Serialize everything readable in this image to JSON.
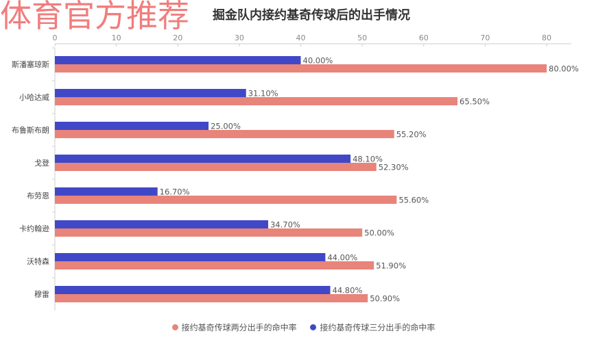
{
  "watermark": "体育官方推荐",
  "chart_data": {
    "type": "bar",
    "orientation": "horizontal",
    "title": "掘金队内接约基奇传球后的出手情况",
    "categories": [
      "斯潘塞琼斯",
      "小哈达威",
      "布鲁斯布朗",
      "戈登",
      "布劳恩",
      "卡约翰逊",
      "沃特森",
      "穆雷"
    ],
    "series": [
      {
        "name": "接约基奇传球三分出手的命中率",
        "color": "#4048c8",
        "values": [
          40.0,
          31.1,
          25.0,
          48.1,
          16.7,
          34.7,
          44.0,
          44.8
        ],
        "labels": [
          "40.00%",
          "31.10%",
          "25.00%",
          "48.10%",
          "16.70%",
          "34.70%",
          "44.00%",
          "44.80%"
        ]
      },
      {
        "name": "接约基奇传球两分出手的命中率",
        "color": "#e8847a",
        "values": [
          80.0,
          65.5,
          55.2,
          52.3,
          55.6,
          50.0,
          51.9,
          50.9
        ],
        "labels": [
          "80.00%",
          "65.50%",
          "55.20%",
          "52.30%",
          "55.60%",
          "50.00%",
          "51.90%",
          "50.90%"
        ]
      }
    ],
    "xlim": [
      0,
      84
    ],
    "xticks": [
      0,
      10,
      20,
      30,
      40,
      50,
      60,
      70,
      80
    ],
    "xaxis_position": "top",
    "grid": false,
    "legend_position": "bottom",
    "legend": [
      "接约基奇传球两分出手的命中率",
      "接约基奇传球三分出手的命中率"
    ]
  }
}
